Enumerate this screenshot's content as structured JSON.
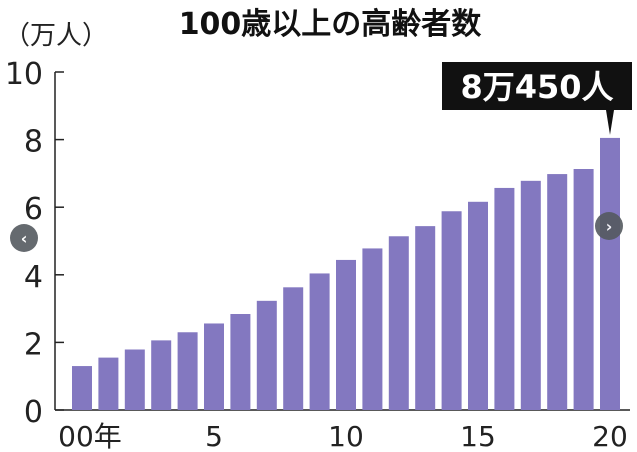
{
  "chart_data": {
    "type": "bar",
    "title": "100歳以上の高齢者数",
    "ylabel": "（万人）",
    "categories": [
      "00",
      "01",
      "02",
      "03",
      "04",
      "05",
      "06",
      "07",
      "08",
      "09",
      "10",
      "11",
      "12",
      "13",
      "14",
      "15",
      "16",
      "17",
      "18",
      "19",
      "20"
    ],
    "x_tick_labels": [
      {
        "index": 0,
        "label": "00年"
      },
      {
        "index": 5,
        "label": "5"
      },
      {
        "index": 10,
        "label": "10"
      },
      {
        "index": 15,
        "label": "15"
      },
      {
        "index": 20,
        "label": "20"
      }
    ],
    "values": [
      1.3,
      1.55,
      1.79,
      2.06,
      2.3,
      2.56,
      2.84,
      3.23,
      3.63,
      4.04,
      4.44,
      4.78,
      5.14,
      5.44,
      5.88,
      6.16,
      6.57,
      6.78,
      6.98,
      7.13,
      8.05
    ],
    "ylim": [
      0,
      10
    ],
    "yticks": [
      0,
      2,
      4,
      6,
      8,
      10
    ],
    "grid": false,
    "bar_color": "#8378c0",
    "annotation": {
      "index": 20,
      "label": "8万450人"
    }
  },
  "nav": {
    "prev_icon": "chevron-left-icon",
    "next_icon": "chevron-right-icon",
    "prev_glyph": "‹",
    "next_glyph": "›"
  }
}
